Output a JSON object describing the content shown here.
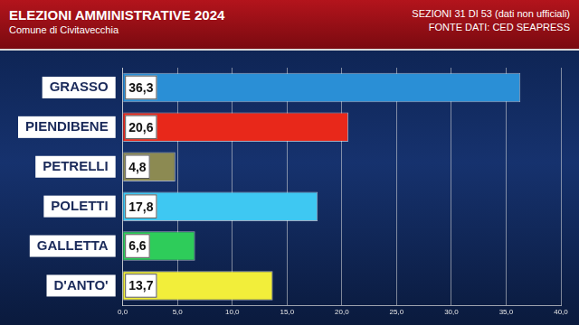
{
  "chart_data": {
    "type": "bar",
    "orientation": "horizontal",
    "title": "ELEZIONI AMMINISTRATIVE 2024",
    "subtitle": "Comune di Civitavecchia",
    "annotations": [
      "SEZIONI 31 DI 53 (dati non ufficiali)",
      "FONTE DATI: CED SEAPRESS"
    ],
    "categories": [
      "GRASSO",
      "PIENDIBENE",
      "PETRELLI",
      "POLETTI",
      "GALLETTA",
      "D'ANTO'"
    ],
    "values": [
      36.3,
      20.6,
      4.8,
      17.8,
      6.6,
      13.7
    ],
    "value_labels": [
      "36,3",
      "20,6",
      "4,8",
      "17,8",
      "6,6",
      "13,7"
    ],
    "colors": [
      "#2a8fd6",
      "#e8281a",
      "#8c8a52",
      "#3ec8f2",
      "#2ecc5a",
      "#f2ee3a"
    ],
    "xlim": [
      0,
      40
    ],
    "xticks": [
      {
        "value": 0,
        "label": "0,0"
      },
      {
        "value": 5,
        "label": "5,0"
      },
      {
        "value": 10,
        "label": "10,0"
      },
      {
        "value": 15,
        "label": "15,0"
      },
      {
        "value": 20,
        "label": "20,0"
      },
      {
        "value": 25,
        "label": "25,0"
      },
      {
        "value": 30,
        "label": "30,0"
      },
      {
        "value": 35,
        "label": "35,0"
      },
      {
        "value": 40,
        "label": "40,0"
      }
    ],
    "grid": true,
    "data_labels": true
  }
}
